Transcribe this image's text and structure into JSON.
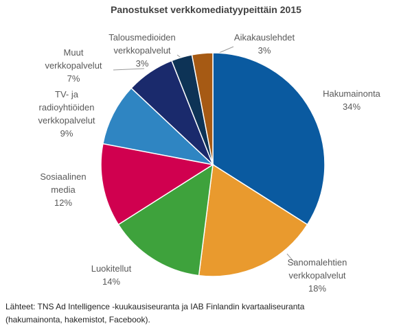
{
  "chart_data": {
    "type": "pie",
    "title": "Panostukset verkkomediatyypeittäin 2015",
    "categories": [
      "Hakumainonta",
      "Sanomalehtien verkkopalvelut",
      "Luokitellut",
      "Sosiaalinen media",
      "TV- ja radioyhtiöiden verkkopalvelut",
      "Muut verkkopalvelut",
      "Talousmedioiden verkkopalvelut",
      "Aikakauslehdet"
    ],
    "values": [
      34,
      18,
      14,
      12,
      9,
      7,
      3,
      3
    ],
    "value_labels": [
      "34%",
      "18%",
      "14%",
      "12%",
      "9%",
      "7%",
      "3%",
      "3%"
    ],
    "colors": [
      "#0a5aa0",
      "#e99a2e",
      "#3ea23c",
      "#d0004f",
      "#2f85c2",
      "#1a2a6c",
      "#0d3356",
      "#a65a14"
    ],
    "source_lines": [
      "Lähteet: TNS Ad Intelligence -kuukausiseuranta ja IAB Finlandin kvartaaliseuranta",
      "(hakumainonta, hakemistot, Facebook)."
    ]
  }
}
